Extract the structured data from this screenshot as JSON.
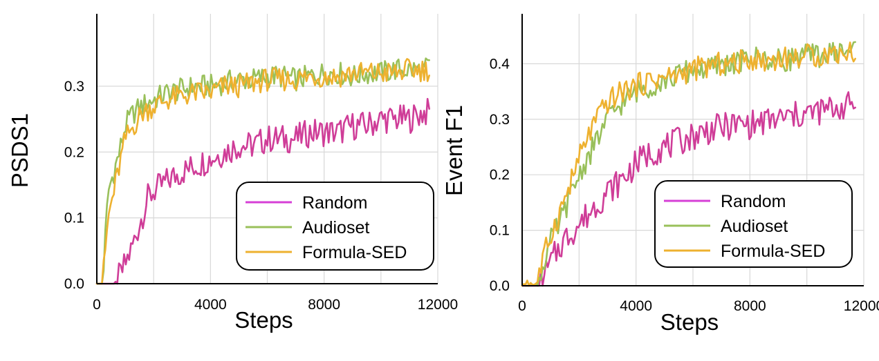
{
  "colors": {
    "random": "#cf3d98",
    "audioset": "#99c05a",
    "formula": "#eeb12f",
    "legend_random": "#d63fd6",
    "grid": "#d8d8d8"
  },
  "legend": [
    "Random",
    "Audioset",
    "Formula-SED"
  ],
  "chart_data": [
    {
      "type": "line",
      "title": "",
      "xlabel": "Steps",
      "ylabel": "PSDS1",
      "xlim": [
        0,
        12000
      ],
      "ylim": [
        0,
        0.41
      ],
      "xticks": [
        0,
        4000,
        8000,
        12000
      ],
      "xtick_labels": [
        "0",
        "4000",
        "8000",
        "12000"
      ],
      "yticks": [
        0.0,
        0.1,
        0.2,
        0.3
      ],
      "ytick_labels": [
        "0.0",
        "0.1",
        "0.2",
        "0.3"
      ],
      "grid": true,
      "legend_position": "bottom-right",
      "series": [
        {
          "name": "Random",
          "color_key": "random",
          "x": [
            0,
            300,
            600,
            800,
            1000,
            1200,
            1500,
            1800,
            2000,
            2300,
            2600,
            3000,
            3500,
            4000,
            4500,
            5000,
            5500,
            6000,
            6500,
            7000,
            7500,
            8000,
            8500,
            9000,
            9500,
            10000,
            10500,
            11000,
            11500,
            11750
          ],
          "y": [
            0.0,
            0.0,
            0.0,
            0.01,
            0.03,
            0.05,
            0.09,
            0.13,
            0.14,
            0.15,
            0.16,
            0.17,
            0.18,
            0.19,
            0.2,
            0.21,
            0.21,
            0.22,
            0.22,
            0.22,
            0.23,
            0.23,
            0.23,
            0.24,
            0.24,
            0.25,
            0.25,
            0.25,
            0.26,
            0.26
          ]
        },
        {
          "name": "Audioset",
          "color_key": "audioset",
          "x": [
            0,
            200,
            400,
            600,
            800,
            1000,
            1300,
            1600,
            2000,
            2500,
            3000,
            3500,
            4000,
            4500,
            5000,
            5500,
            6000,
            6500,
            7000,
            7500,
            8000,
            8500,
            9000,
            9500,
            10000,
            10500,
            11000,
            11500,
            11750
          ],
          "y": [
            0.0,
            0.0,
            0.14,
            0.17,
            0.2,
            0.24,
            0.26,
            0.27,
            0.28,
            0.29,
            0.295,
            0.3,
            0.3,
            0.305,
            0.31,
            0.31,
            0.315,
            0.315,
            0.31,
            0.315,
            0.32,
            0.32,
            0.315,
            0.32,
            0.32,
            0.325,
            0.325,
            0.325,
            0.33
          ]
        },
        {
          "name": "Formula-SED",
          "color_key": "formula",
          "x": [
            0,
            200,
            400,
            600,
            800,
            1000,
            1300,
            1600,
            2000,
            2500,
            3000,
            3500,
            4000,
            4500,
            5000,
            5500,
            6000,
            6500,
            7000,
            7500,
            8000,
            8500,
            9000,
            9500,
            10000,
            10500,
            11000,
            11500,
            11750
          ],
          "y": [
            0.0,
            0.0,
            0.1,
            0.14,
            0.18,
            0.22,
            0.24,
            0.26,
            0.27,
            0.28,
            0.285,
            0.29,
            0.29,
            0.3,
            0.3,
            0.305,
            0.31,
            0.31,
            0.31,
            0.315,
            0.315,
            0.315,
            0.32,
            0.32,
            0.32,
            0.32,
            0.325,
            0.325,
            0.325
          ]
        }
      ]
    },
    {
      "type": "line",
      "title": "",
      "xlabel": "Steps",
      "ylabel": "Event F1",
      "xlim": [
        0,
        12000
      ],
      "ylim": [
        0,
        0.49
      ],
      "xticks": [
        0,
        4000,
        8000,
        12000
      ],
      "xtick_labels": [
        "0",
        "4000",
        "8000",
        "12000"
      ],
      "yticks": [
        0.0,
        0.1,
        0.2,
        0.3,
        0.4
      ],
      "ytick_labels": [
        "0.0",
        "0.1",
        "0.2",
        "0.3",
        "0.4"
      ],
      "grid": true,
      "legend_position": "bottom-right",
      "series": [
        {
          "name": "Random",
          "color_key": "random",
          "x": [
            0,
            300,
            600,
            800,
            1000,
            1300,
            1600,
            2000,
            2500,
            3000,
            3500,
            4000,
            4500,
            5000,
            5500,
            6000,
            6500,
            7000,
            7500,
            8000,
            8500,
            9000,
            9500,
            10000,
            10500,
            11000,
            11500,
            11750
          ],
          "y": [
            0.0,
            0.0,
            0.0,
            0.02,
            0.04,
            0.07,
            0.09,
            0.11,
            0.14,
            0.17,
            0.19,
            0.22,
            0.24,
            0.25,
            0.26,
            0.27,
            0.28,
            0.285,
            0.29,
            0.29,
            0.295,
            0.3,
            0.305,
            0.31,
            0.315,
            0.32,
            0.325,
            0.33
          ]
        },
        {
          "name": "Audioset",
          "color_key": "audioset",
          "x": [
            0,
            200,
            400,
            600,
            800,
            1000,
            1300,
            1600,
            2000,
            2500,
            3000,
            3500,
            4000,
            4500,
            5000,
            5500,
            6000,
            6500,
            7000,
            7500,
            8000,
            8500,
            9000,
            9500,
            10000,
            10500,
            11000,
            11500,
            11750
          ],
          "y": [
            0.0,
            0.01,
            0.0,
            0.01,
            0.05,
            0.08,
            0.11,
            0.15,
            0.2,
            0.25,
            0.3,
            0.33,
            0.35,
            0.36,
            0.37,
            0.38,
            0.39,
            0.39,
            0.4,
            0.4,
            0.41,
            0.41,
            0.405,
            0.41,
            0.415,
            0.415,
            0.42,
            0.425,
            0.43
          ]
        },
        {
          "name": "Formula-SED",
          "color_key": "formula",
          "x": [
            0,
            200,
            400,
            600,
            800,
            1000,
            1300,
            1600,
            2000,
            2500,
            3000,
            3500,
            4000,
            4500,
            5000,
            5500,
            6000,
            6500,
            7000,
            7500,
            8000,
            8500,
            9000,
            9500,
            10000,
            10500,
            11000,
            11500,
            11750
          ],
          "y": [
            0.0,
            0.01,
            0.0,
            0.02,
            0.06,
            0.09,
            0.13,
            0.17,
            0.23,
            0.29,
            0.33,
            0.35,
            0.36,
            0.37,
            0.375,
            0.38,
            0.39,
            0.395,
            0.4,
            0.4,
            0.41,
            0.405,
            0.41,
            0.41,
            0.415,
            0.415,
            0.42,
            0.42,
            0.425
          ]
        }
      ]
    }
  ]
}
